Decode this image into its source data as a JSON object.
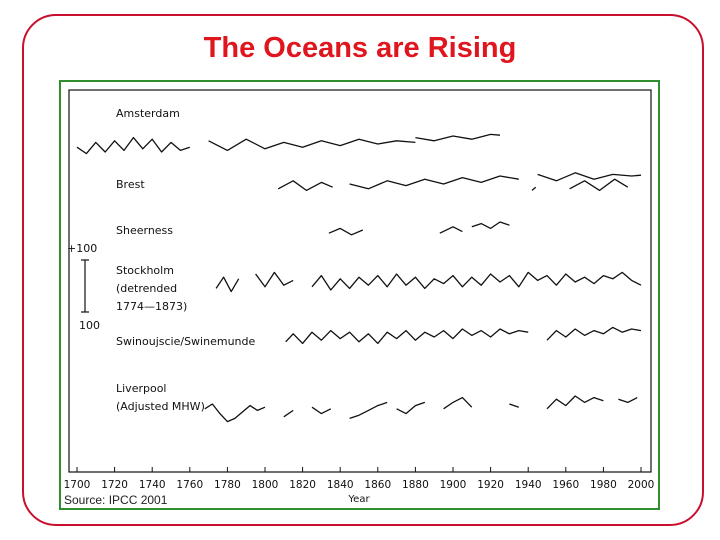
{
  "title": "The Oceans are Rising",
  "source": "Source: IPCC 2001",
  "colors": {
    "frame": "#c8102e",
    "title": "#e0161f",
    "figure_border": "#2f8f2f",
    "ink": "#111111"
  },
  "chart_data": {
    "type": "line",
    "title": "",
    "xlabel": "Year",
    "ylabel": "",
    "xlim": [
      1700,
      2000
    ],
    "x_ticks": [
      1700,
      1720,
      1740,
      1760,
      1780,
      1800,
      1820,
      1840,
      1860,
      1880,
      1900,
      1920,
      1940,
      1960,
      1980,
      2000
    ],
    "scale_bar": {
      "label_top": "+100",
      "label_bottom": "100",
      "span_mm": 200
    },
    "series": [
      {
        "name": "Amsterdam",
        "labels": [
          "Amsterdam"
        ],
        "segments": [
          {
            "x": [
              1700,
              1705,
              1710,
              1715,
              1720,
              1725,
              1730,
              1735,
              1740,
              1745,
              1750,
              1755,
              1760
            ],
            "y": [
              -20,
              -60,
              10,
              -50,
              20,
              -40,
              40,
              -30,
              30,
              -50,
              10,
              -40,
              -20
            ]
          },
          {
            "x": [
              1770,
              1780,
              1790,
              1800,
              1810,
              1820,
              1830,
              1840,
              1850,
              1860,
              1870,
              1880
            ],
            "y": [
              20,
              -40,
              30,
              -30,
              10,
              -20,
              20,
              -10,
              30,
              0,
              20,
              10
            ]
          },
          {
            "x": [
              1880,
              1890,
              1900,
              1910,
              1920,
              1925
            ],
            "y": [
              40,
              20,
              50,
              30,
              60,
              55
            ]
          }
        ]
      },
      {
        "name": "Brest",
        "labels": [
          "Brest"
        ],
        "segments": [
          {
            "x": [
              1807,
              1815,
              1822,
              1830,
              1836
            ],
            "y": [
              -30,
              20,
              -40,
              10,
              -20
            ]
          },
          {
            "x": [
              1845,
              1855,
              1865,
              1875,
              1885,
              1895,
              1905,
              1915,
              1925,
              1935
            ],
            "y": [
              0,
              -30,
              20,
              -10,
              30,
              0,
              40,
              10,
              50,
              30
            ]
          },
          {
            "x": [
              1945,
              1955,
              1965,
              1975,
              1985,
              1995,
              2000
            ],
            "y": [
              60,
              20,
              70,
              30,
              60,
              50,
              55
            ]
          },
          {
            "x": [
              1942,
              1944
            ],
            "y": [
              -40,
              -20
            ]
          },
          {
            "x": [
              1962,
              1970,
              1978,
              1986,
              1993
            ],
            "y": [
              -30,
              20,
              -40,
              30,
              -20
            ]
          }
        ]
      },
      {
        "name": "Sheerness",
        "labels": [
          "Sheerness"
        ],
        "segments": [
          {
            "x": [
              1834,
              1840,
              1846,
              1852
            ],
            "y": [
              -20,
              10,
              -30,
              0
            ]
          },
          {
            "x": [
              1893,
              1900,
              1905
            ],
            "y": [
              -20,
              20,
              -10
            ]
          },
          {
            "x": [
              1910,
              1915,
              1920,
              1925,
              1930
            ],
            "y": [
              20,
              40,
              10,
              50,
              30
            ]
          }
        ]
      },
      {
        "name": "Stockholm (detrended 1774-1873)",
        "labels": [
          "Stockholm",
          "(detrended",
          "1774—1873)"
        ],
        "segments": [
          {
            "x": [
              1774,
              1778,
              1782,
              1786
            ],
            "y": [
              -40,
              30,
              -60,
              20
            ]
          },
          {
            "x": [
              1795,
              1800,
              1805,
              1810,
              1815
            ],
            "y": [
              50,
              -30,
              60,
              -20,
              10
            ]
          },
          {
            "x": [
              1825,
              1830,
              1835,
              1840,
              1845,
              1850,
              1855,
              1860,
              1865,
              1870,
              1875,
              1880,
              1885,
              1890,
              1895,
              1900,
              1905,
              1910,
              1915,
              1920,
              1925,
              1930,
              1935,
              1940,
              1945,
              1950,
              1955,
              1960,
              1965,
              1970,
              1975,
              1980,
              1985,
              1990,
              1995,
              2000
            ],
            "y": [
              -30,
              40,
              -50,
              20,
              -40,
              30,
              -20,
              40,
              -30,
              50,
              -20,
              30,
              -40,
              20,
              -10,
              40,
              -30,
              30,
              -20,
              50,
              0,
              40,
              -30,
              60,
              10,
              40,
              -20,
              50,
              0,
              30,
              -10,
              40,
              20,
              60,
              10,
              -20
            ]
          }
        ]
      },
      {
        "name": "Swinoujscie/Swinemunde",
        "labels": [
          "Swinoujscie/Swinemunde"
        ],
        "segments": [
          {
            "x": [
              1811,
              1815,
              1820,
              1825,
              1830,
              1835,
              1840,
              1845,
              1850,
              1855,
              1860,
              1865,
              1870,
              1875,
              1880,
              1885,
              1890,
              1895,
              1900,
              1905,
              1910,
              1915,
              1920,
              1925,
              1930,
              1935,
              1940
            ],
            "y": [
              -30,
              20,
              -40,
              30,
              -20,
              40,
              -10,
              30,
              -30,
              20,
              -40,
              30,
              -10,
              40,
              -20,
              30,
              0,
              40,
              -10,
              50,
              10,
              40,
              0,
              50,
              20,
              40,
              30
            ]
          },
          {
            "x": [
              1950,
              1955,
              1960,
              1965,
              1970,
              1975,
              1980,
              1985,
              1990,
              1995,
              2000
            ],
            "y": [
              -20,
              40,
              0,
              50,
              10,
              40,
              20,
              60,
              30,
              50,
              40
            ]
          }
        ]
      },
      {
        "name": "Liverpool (Adjusted MHW)",
        "labels": [
          "Liverpool",
          "(Adjusted MHW)"
        ],
        "segments": [
          {
            "x": [
              1768,
              1772,
              1776,
              1780,
              1784,
              1788,
              1792,
              1796,
              1800
            ],
            "y": [
              20,
              50,
              -10,
              -60,
              -40,
              0,
              40,
              10,
              30
            ]
          },
          {
            "x": [
              1810,
              1815
            ],
            "y": [
              -30,
              10
            ]
          },
          {
            "x": [
              1825,
              1830,
              1835
            ],
            "y": [
              30,
              -10,
              20
            ]
          },
          {
            "x": [
              1845,
              1850,
              1855,
              1860,
              1865
            ],
            "y": [
              -40,
              -20,
              10,
              40,
              60
            ]
          },
          {
            "x": [
              1870,
              1875,
              1880,
              1885
            ],
            "y": [
              20,
              -10,
              40,
              60
            ]
          },
          {
            "x": [
              1895,
              1900,
              1905,
              1910
            ],
            "y": [
              20,
              60,
              90,
              30
            ]
          },
          {
            "x": [
              1930,
              1935
            ],
            "y": [
              50,
              30
            ]
          },
          {
            "x": [
              1950,
              1955,
              1960,
              1965,
              1970,
              1975,
              1980
            ],
            "y": [
              20,
              80,
              40,
              100,
              60,
              90,
              70
            ]
          },
          {
            "x": [
              1988,
              1993,
              1998
            ],
            "y": [
              80,
              60,
              90
            ]
          }
        ]
      }
    ]
  }
}
